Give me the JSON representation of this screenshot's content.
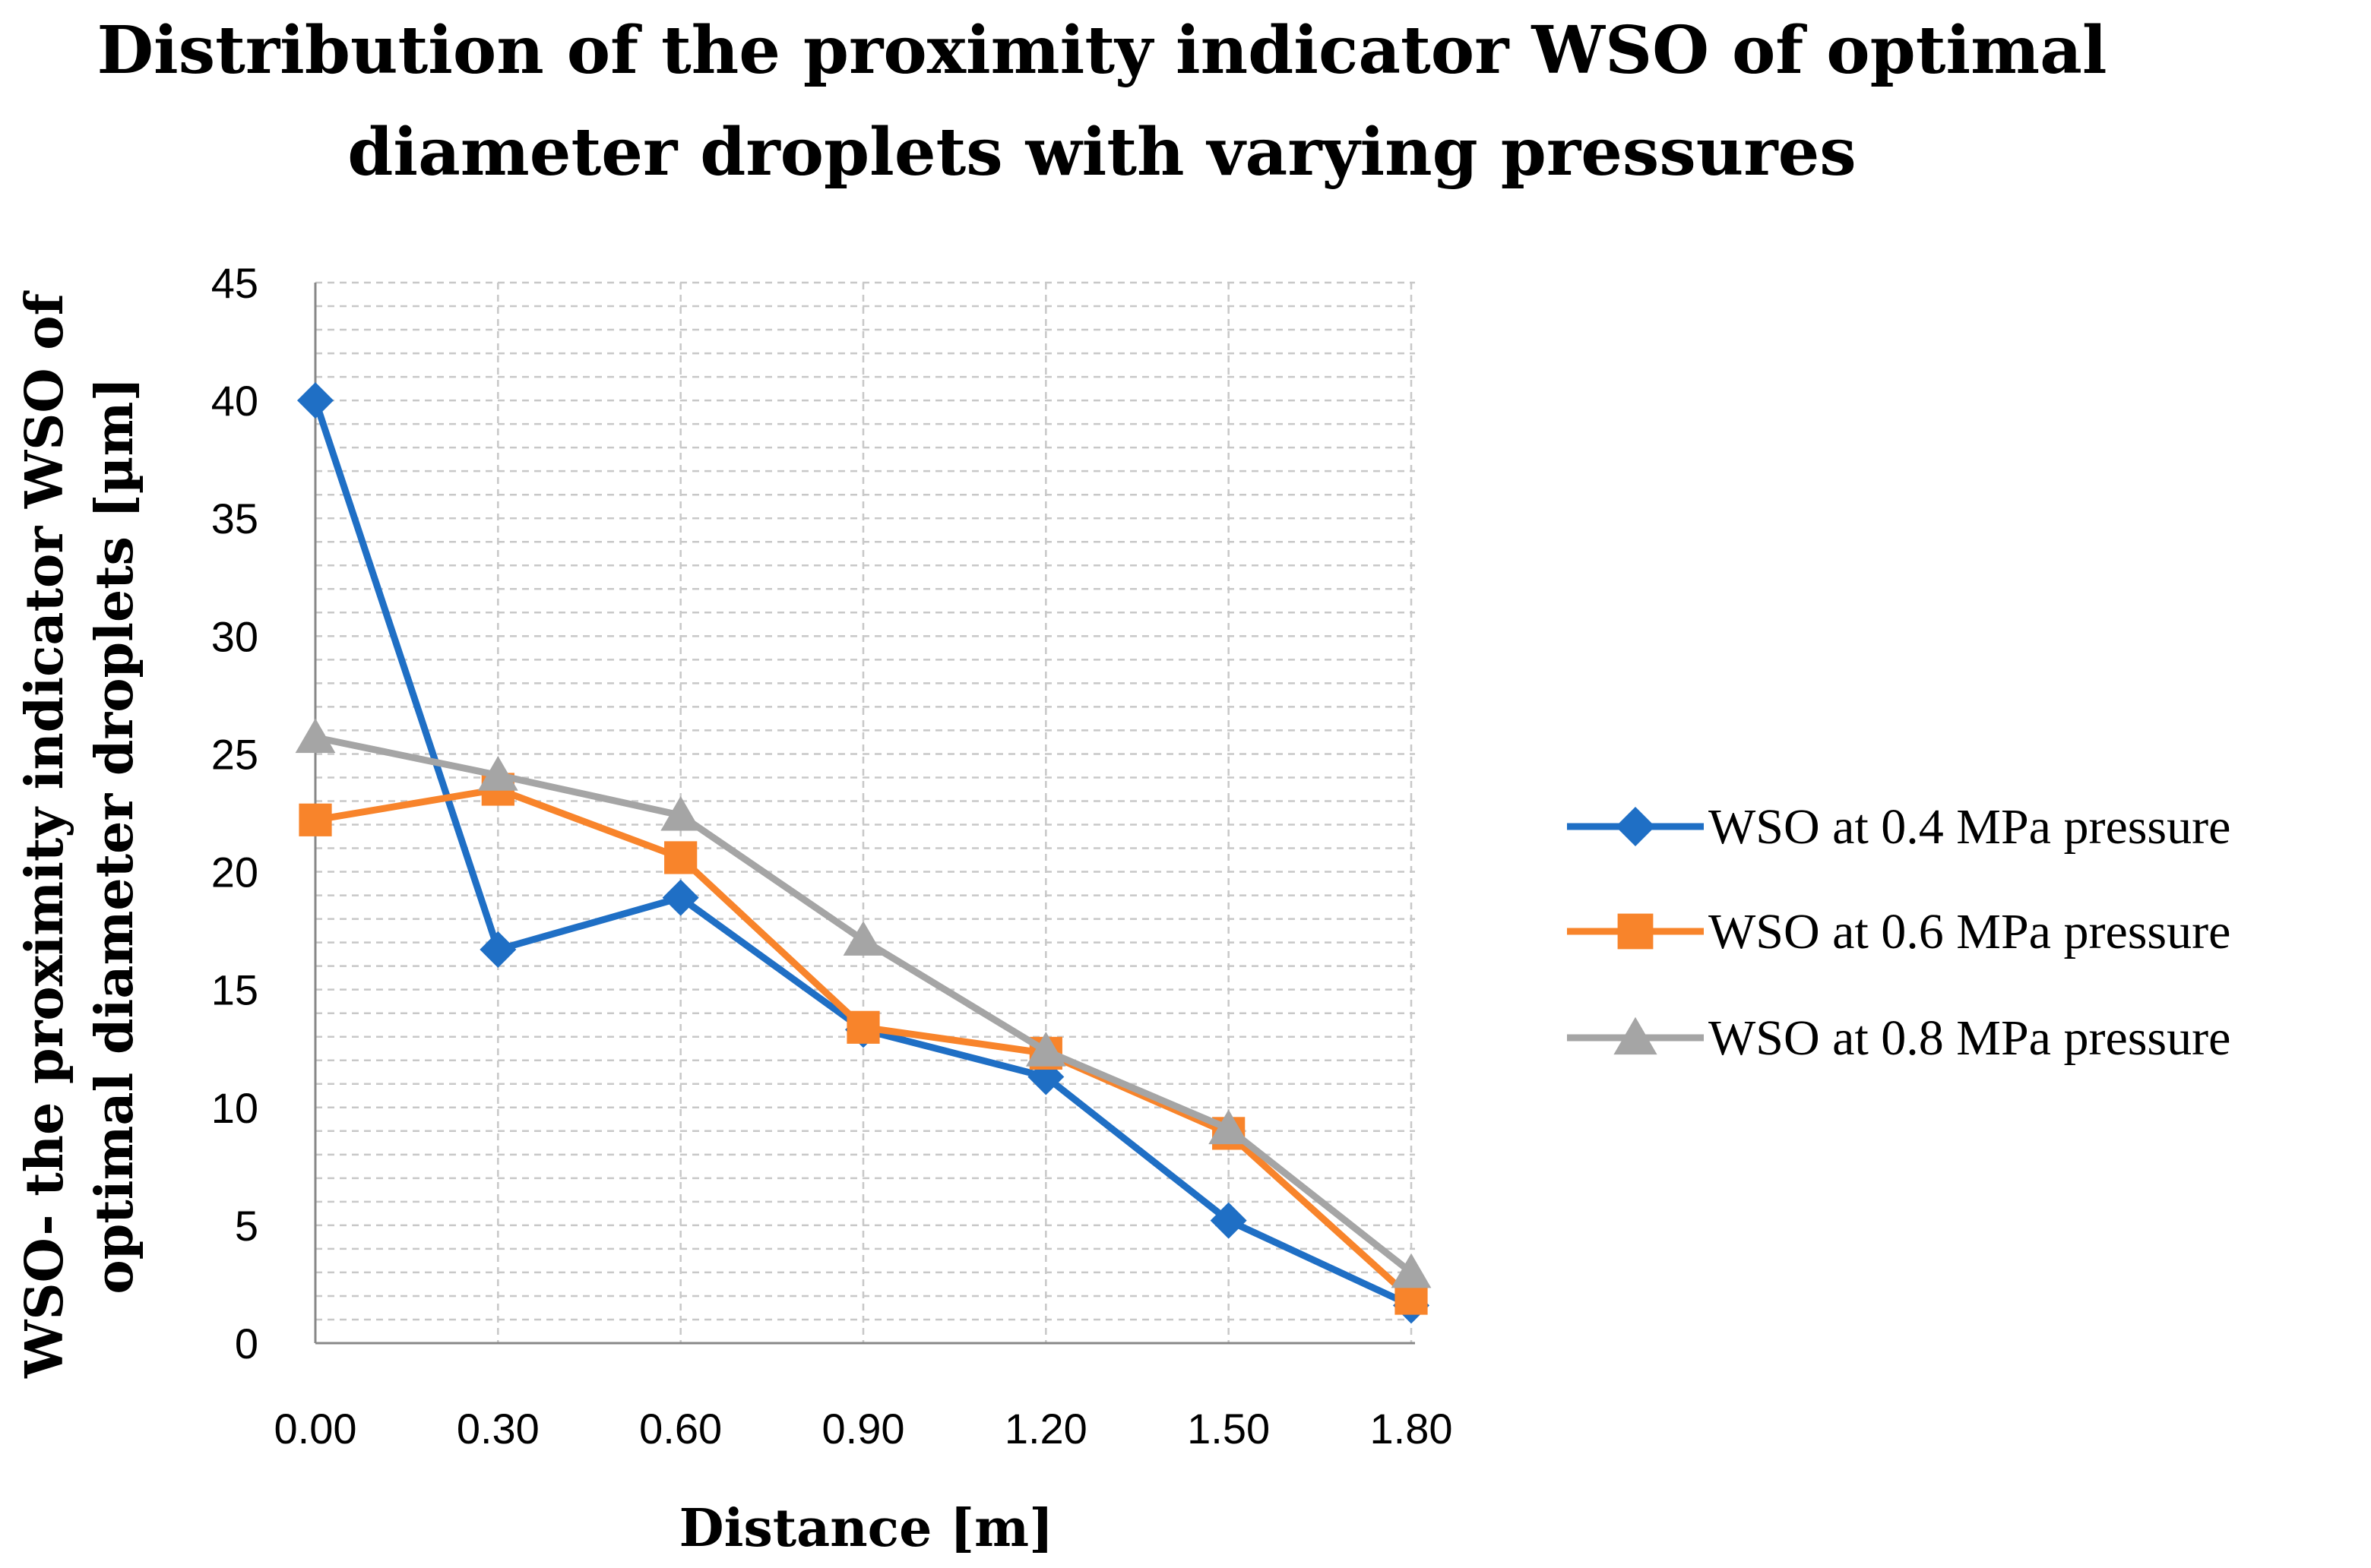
{
  "chart_data": {
    "type": "line",
    "title_lines": [
      "Distribution of the proximity indicator WSO of optimal",
      "diameter droplets with varying pressures"
    ],
    "xlabel": "Distance [m]",
    "ylabel_lines": [
      "WSO-  the proximity indicator WSO of",
      "optimal diameter droplets   [µm]"
    ],
    "categories": [
      "0.00",
      "0.30",
      "0.60",
      "0.90",
      "1.20",
      "1.50",
      "1.80"
    ],
    "ylim": [
      0,
      45
    ],
    "yticks": [
      "0",
      "5",
      "10",
      "15",
      "20",
      "25",
      "30",
      "35",
      "40",
      "45"
    ],
    "y_minor_step": 1,
    "grid": true,
    "legend_position": "right",
    "series": [
      {
        "name": "WSO at 0.4 MPa pressure",
        "marker": "diamond",
        "color": "#1F6FC5",
        "values": [
          40,
          16.7,
          18.9,
          13.3,
          11.3,
          5.2,
          1.6
        ]
      },
      {
        "name": "WSO at 0.6 MPa pressure",
        "marker": "square",
        "color": "#F8842B",
        "values": [
          22.2,
          23.5,
          20.6,
          13.4,
          12.3,
          8.9,
          1.9
        ]
      },
      {
        "name": "WSO at 0.8 MPa pressure",
        "marker": "triangle",
        "color": "#A5A5A5",
        "values": [
          25.7,
          24.1,
          22.4,
          17.1,
          12.4,
          9.1,
          3.0
        ]
      }
    ]
  }
}
